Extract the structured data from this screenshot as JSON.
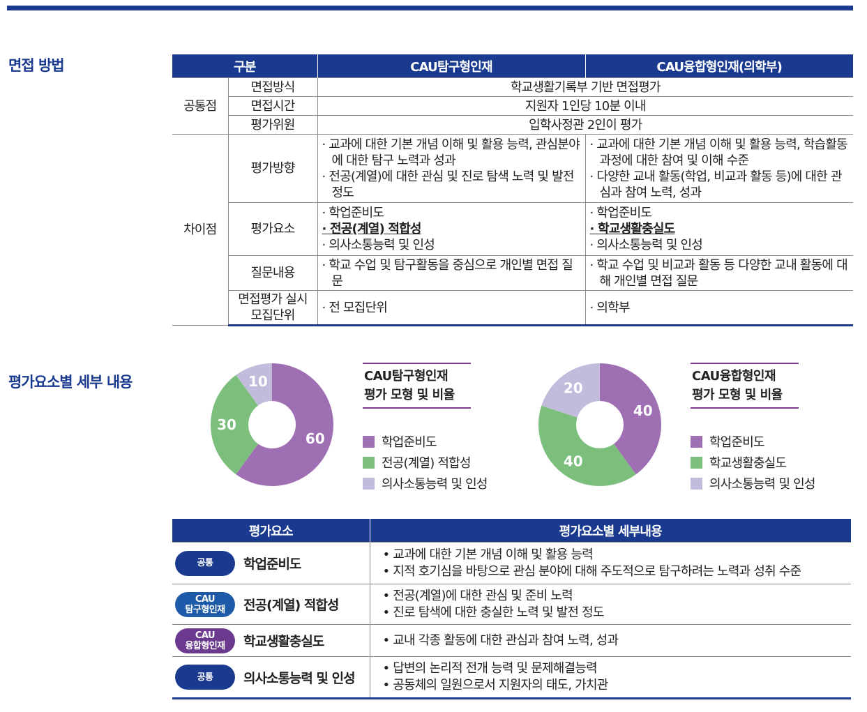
{
  "section1": {
    "title": "면접 방법"
  },
  "interview_table": {
    "headers": [
      "구분",
      "CAU탐구형인재",
      "CAU융합형인재(의학부)"
    ],
    "common": {
      "group": "공통점",
      "rows": [
        {
          "label": "면접방식",
          "value": "학교생활기록부 기반 면접평가"
        },
        {
          "label": "면접시간",
          "value": "지원자 1인당 10분 이내"
        },
        {
          "label": "평가위원",
          "value": "입학사정관 2인이 평가"
        }
      ]
    },
    "diff": {
      "group": "차이점",
      "direction": {
        "label": "평가방향",
        "a": [
          "교과에 대한 기본 개념 이해 및 활용 능력, 관심분야에 대한 탐구 노력과 성과",
          "전공(계열)에 대한 관심 및 진로 탐색 노력 및 발전 정도"
        ],
        "b": [
          "교과에 대한 기본 개념 이해 및 활용 능력, 학습활동 과정에 대한 참여 및 이해 수준",
          "다양한 교내 활동(학업, 비교과 활동 등)에 대한 관심과 참여 노력, 성과"
        ]
      },
      "elements": {
        "label": "평가요소",
        "a": [
          "학업준비도",
          "전공(계열) 적합성",
          "의사소통능력 및 인성"
        ],
        "b": [
          "학업준비도",
          "학교생활충실도",
          "의사소통능력 및 인성"
        ]
      },
      "questions": {
        "label": "질문내용",
        "a": "학교 수업 및 탐구활동을 중심으로 개인별 면접 질문",
        "b": "학교 수업 및 비교과 활동 등 다양한 교내 활동에 대해 개인별 면접 질문"
      },
      "units": {
        "label_1": "면접평가 실시",
        "label_2": "모집단위",
        "a": "전 모집단위",
        "b": "의학부"
      }
    }
  },
  "section2": {
    "title": "평가요소별 세부 내용"
  },
  "chart_data": [
    {
      "type": "pie",
      "title": "CAU탐구형인재 평가 모형 및 비율",
      "title_line1": "CAU탐구형인재",
      "title_line2": "평가 모형 및 비율",
      "categories": [
        "학업준비도",
        "전공(계열) 적합성",
        "의사소통능력 및 인성"
      ],
      "values": [
        60,
        30,
        10
      ],
      "colors": [
        "#9e6fb3",
        "#7cbf7c",
        "#c2bcdc"
      ],
      "legend_placement": "right"
    },
    {
      "type": "pie",
      "title": "CAU융합형인재 평가 모형 및 비율",
      "title_line1": "CAU융합형인재",
      "title_line2": "평가 모형 및 비율",
      "categories": [
        "학업준비도",
        "학교생활충실도",
        "의사소통능력 및 인성"
      ],
      "values": [
        40,
        40,
        20
      ],
      "colors": [
        "#9e6fb3",
        "#7cbf7c",
        "#c2bcdc"
      ],
      "legend_placement": "right"
    }
  ],
  "detail_table": {
    "headers": [
      "평가요소",
      "평가요소별 세부내용"
    ],
    "rows": [
      {
        "badge_line1": "공통",
        "badge_line2": "",
        "badge_color": "#1a3a8f",
        "element": "학업준비도",
        "details": [
          "교과에 대한 기본 개념 이해 및 활용 능력",
          "지적 호기심을 바탕으로 관심 분야에 대해 주도적으로 탐구하려는 노력과 성취 수준"
        ]
      },
      {
        "badge_line1": "CAU",
        "badge_line2": "탐구형인재",
        "badge_color": "#1d5aa8",
        "element": "전공(계열) 적합성",
        "details": [
          "전공(계열)에 대한 관심 및 준비 노력",
          "진로 탐색에 대한 충실한 노력 및 발전 정도"
        ]
      },
      {
        "badge_line1": "CAU",
        "badge_line2": "융합형인재",
        "badge_color": "#6b3a8e",
        "element": "학교생활충실도",
        "details": [
          "교내 각종 활동에 대한 관심과 참여 노력, 성과"
        ]
      },
      {
        "badge_line1": "공통",
        "badge_line2": "",
        "badge_color": "#1a3a8f",
        "element": "의사소통능력 및 인성",
        "details": [
          "답변의 논리적 전개 능력 및 문제해결능력",
          "공동체의 일원으로서 지원자의 태도, 가치관"
        ]
      }
    ]
  }
}
